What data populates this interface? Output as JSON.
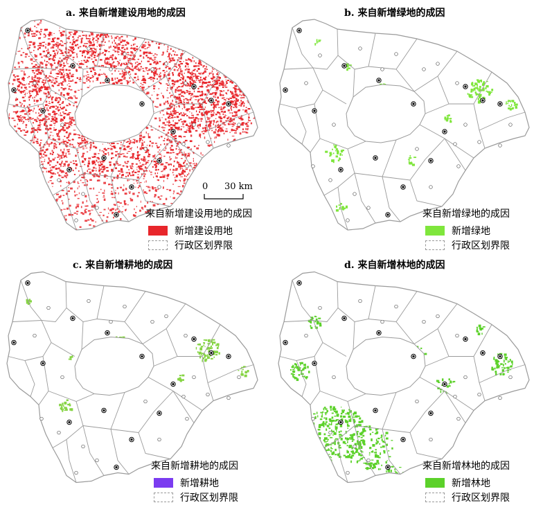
{
  "panels": [
    {
      "id": "a",
      "title": "a. 来自新增建设用地的成因",
      "legend_title": "来自新增建设用地的成因",
      "fill_label": "新增建设用地",
      "fill_color": "#e8262b",
      "boundary_label": "行政区划界限"
    },
    {
      "id": "b",
      "title": "b. 来自新增绿地的成因",
      "legend_title": "来自新增绿地的成因",
      "fill_label": "新增绿地",
      "fill_color": "#7fe63c",
      "boundary_label": "行政区划界限"
    },
    {
      "id": "c",
      "title": "c. 来自新增耕地的成因",
      "legend_title": "来自新增耕地的成因",
      "fill_label": "新增耕地",
      "fill_color": "#7b3cf0",
      "boundary_label": "行政区划界限",
      "map_pattern_color": "#86d444"
    },
    {
      "id": "d",
      "title": "d. 来自新增林地的成因",
      "legend_title": "来自新增林地的成因",
      "fill_label": "新增林地",
      "fill_color": "#5cd12a",
      "boundary_label": "行政区划界限"
    }
  ],
  "scalebar": {
    "zero": "0",
    "value": "30 km"
  },
  "colors": {
    "boundary": "#9a9a9a",
    "lake": "#ffffff",
    "city_marker": "#000000"
  }
}
